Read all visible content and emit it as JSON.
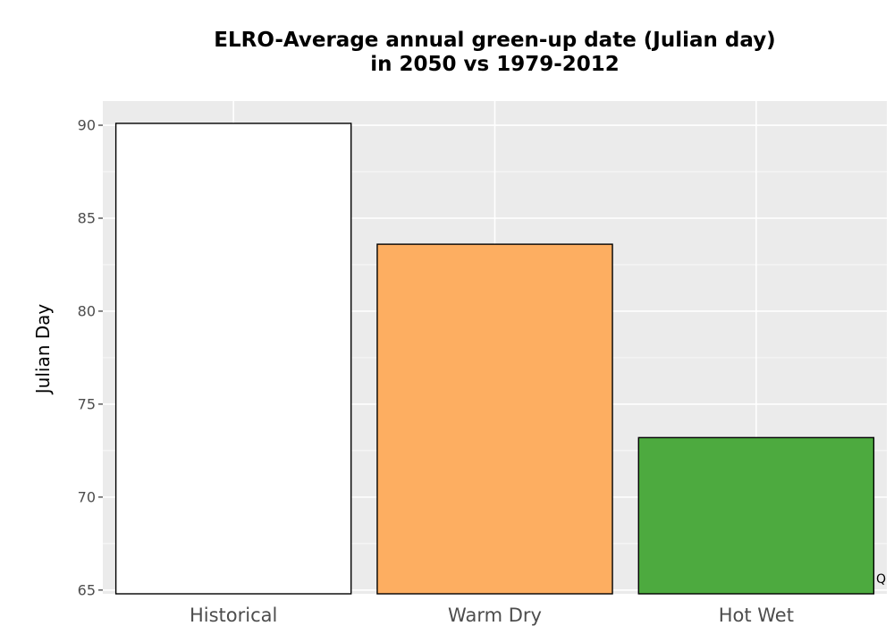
{
  "chart_data": {
    "type": "bar",
    "title_lines": [
      "ELRO-Average annual green-up date (Julian day)",
      "in 2050 vs 1979-2012"
    ],
    "xlabel": "",
    "ylabel": "Julian Day",
    "categories": [
      "Historical",
      "Warm Dry",
      "Hot Wet"
    ],
    "values": [
      90.1,
      83.6,
      73.2
    ],
    "colors": [
      "#ffffff",
      "#fdae61",
      "#4daa3f"
    ],
    "bar_outline": "#000000",
    "panel_background": "#ebebeb",
    "grid_color": "#ffffff",
    "ylim": [
      64.8,
      91.3
    ],
    "yticks": [
      65,
      70,
      75,
      80,
      85,
      90
    ],
    "grid": true,
    "legend": "none"
  },
  "corner_mark": "Q"
}
